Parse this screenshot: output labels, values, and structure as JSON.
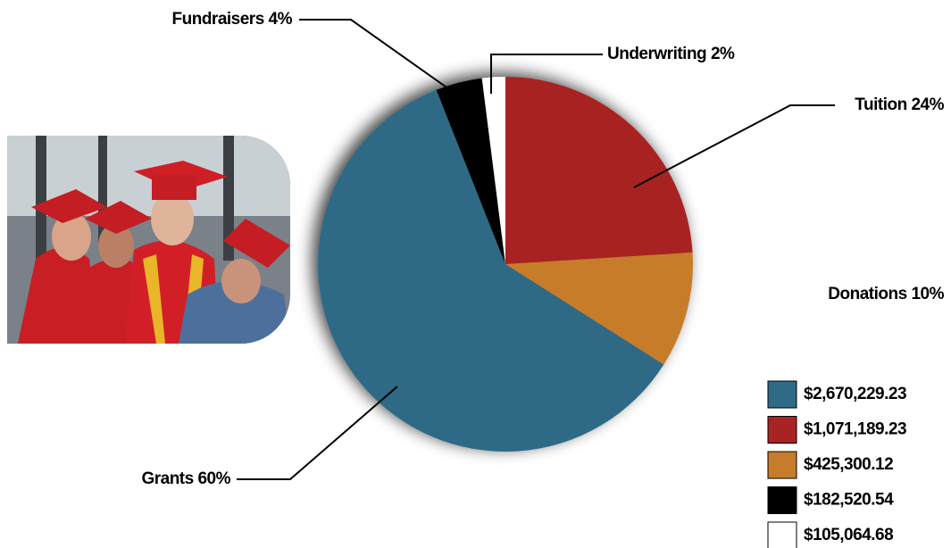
{
  "chart_data": {
    "type": "pie",
    "categories": [
      "Tuition",
      "Donations",
      "Grants",
      "Fundraisers",
      "Underwriting"
    ],
    "values": [
      24,
      10,
      60,
      4,
      2
    ],
    "value_labels": [
      "Tuition 24%",
      "Donations 10%",
      "Grants 60%",
      "Fundraisers 4%",
      "Underwriting 2%"
    ],
    "colors": [
      "#a82424",
      "#c77c2b",
      "#2f6b86",
      "#000000",
      "#ffffff"
    ],
    "legend": [
      {
        "label": "$2,670,229.23",
        "color": "#2f6b86"
      },
      {
        "label": "$1,071,189.23",
        "color": "#a82424"
      },
      {
        "label": "$425,300.12",
        "color": "#c77c2b"
      },
      {
        "label": "$182,520.54",
        "color": "#000000"
      },
      {
        "label": "$105,064.68",
        "color": "#ffffff"
      }
    ]
  }
}
